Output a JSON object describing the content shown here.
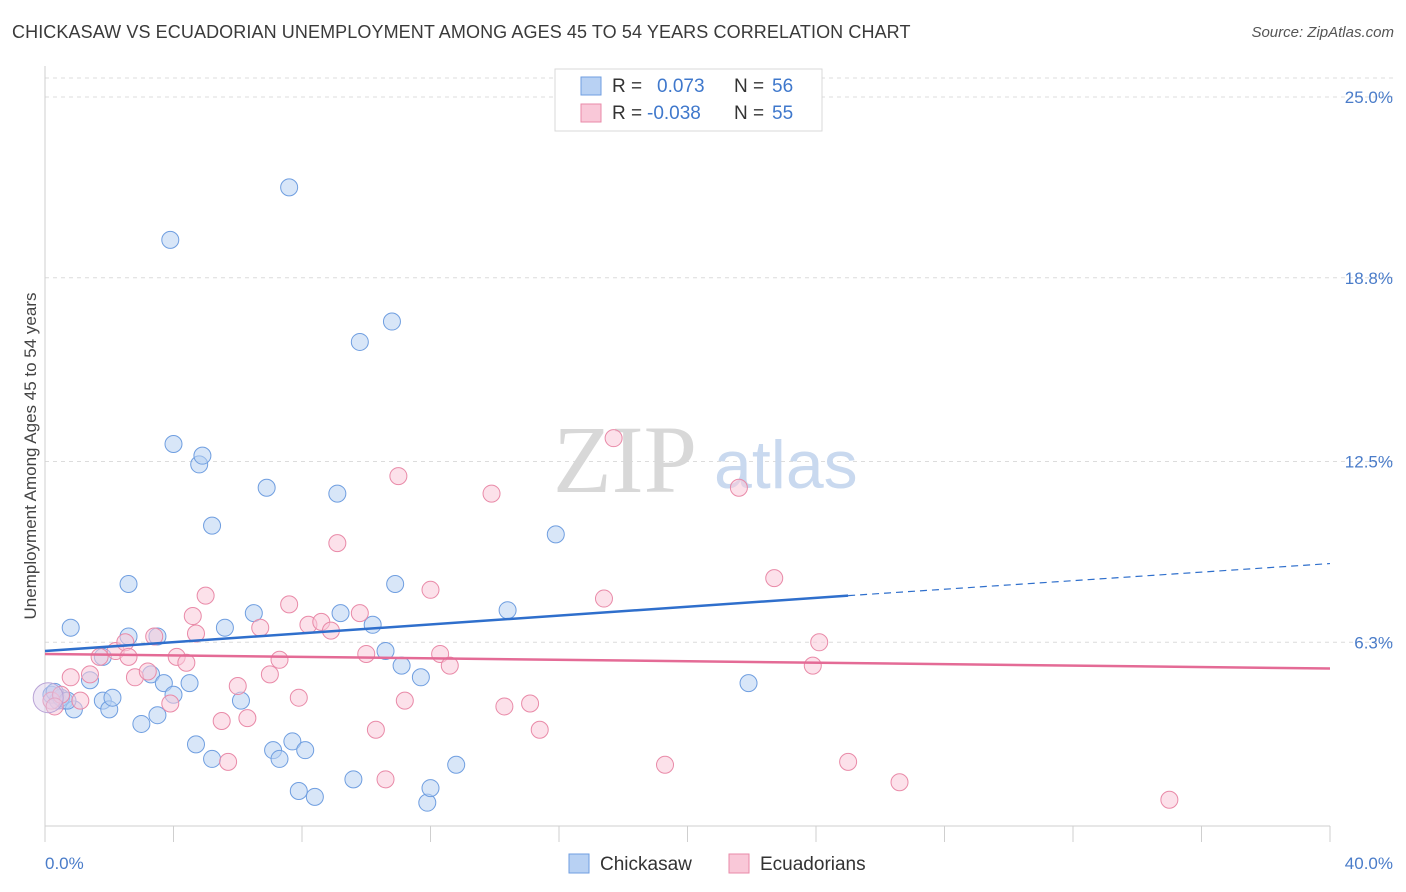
{
  "title": "CHICKASAW VS ECUADORIAN UNEMPLOYMENT AMONG AGES 45 TO 54 YEARS CORRELATION CHART",
  "source": "Source: ZipAtlas.com",
  "watermark": {
    "zip": "ZIP",
    "atlas": "atlas"
  },
  "legend": {
    "r_label": "R =",
    "n_label": "N =",
    "rows": [
      {
        "r": "0.073",
        "n": "56",
        "color": "#b8d1f3",
        "stroke": "#6f9ee0"
      },
      {
        "r": "-0.038",
        "n": "55",
        "color": "#f9c8d8",
        "stroke": "#e98aa8"
      }
    ]
  },
  "bottom_legend": [
    {
      "label": "Chickasaw",
      "color": "#b8d1f3",
      "stroke": "#6f9ee0"
    },
    {
      "label": "Ecuadorians",
      "color": "#f9c8d8",
      "stroke": "#e98aa8"
    }
  ],
  "chart_data": {
    "type": "scatter",
    "title": "CHICKASAW VS ECUADORIAN UNEMPLOYMENT AMONG AGES 45 TO 54 YEARS CORRELATION CHART",
    "xlabel": "",
    "ylabel": "Unemployment Among Ages 45 to 54 years",
    "xlim": [
      0,
      40
    ],
    "ylim": [
      0,
      25
    ],
    "x_ticks": [
      "0.0%",
      "40.0%"
    ],
    "y_ticks": [
      {
        "value": 6.3,
        "label": "6.3%"
      },
      {
        "value": 12.5,
        "label": "12.5%"
      },
      {
        "value": 18.8,
        "label": "18.8%"
      },
      {
        "value": 25.0,
        "label": "25.0%"
      }
    ],
    "series": [
      {
        "name": "Chickasaw",
        "color": "#6f9ee0",
        "fill": "#b8d1f3",
        "trend": {
          "x0": 0,
          "y0": 6.0,
          "x1": 25,
          "y1": 7.9,
          "dash_to_x": 40,
          "dash_to_y": 9.0,
          "color": "#2f6fcc"
        },
        "points": [
          [
            0.2,
            4.5
          ],
          [
            0.4,
            4.3
          ],
          [
            0.6,
            4.3
          ],
          [
            0.8,
            6.8
          ],
          [
            0.9,
            4.0
          ],
          [
            1.8,
            4.3
          ],
          [
            1.8,
            5.8
          ],
          [
            2.6,
            6.5
          ],
          [
            2.6,
            8.3
          ],
          [
            2.0,
            4.0
          ],
          [
            3.0,
            3.5
          ],
          [
            3.3,
            5.2
          ],
          [
            3.5,
            6.5
          ],
          [
            3.5,
            3.8
          ],
          [
            3.7,
            4.9
          ],
          [
            4.0,
            4.5
          ],
          [
            4.0,
            13.1
          ],
          [
            4.5,
            4.9
          ],
          [
            4.7,
            2.8
          ],
          [
            4.8,
            12.4
          ],
          [
            4.9,
            12.7
          ],
          [
            5.2,
            10.3
          ],
          [
            5.2,
            2.3
          ],
          [
            5.6,
            6.8
          ],
          [
            6.1,
            4.3
          ],
          [
            6.5,
            7.3
          ],
          [
            6.9,
            11.6
          ],
          [
            7.1,
            2.6
          ],
          [
            7.3,
            2.3
          ],
          [
            7.6,
            21.9
          ],
          [
            7.7,
            2.9
          ],
          [
            7.9,
            1.2
          ],
          [
            8.1,
            2.6
          ],
          [
            8.4,
            1.0
          ],
          [
            9.1,
            11.4
          ],
          [
            9.2,
            7.3
          ],
          [
            9.6,
            1.6
          ],
          [
            9.8,
            16.6
          ],
          [
            10.2,
            6.9
          ],
          [
            10.6,
            6.0
          ],
          [
            10.8,
            17.3
          ],
          [
            10.9,
            8.3
          ],
          [
            11.1,
            5.5
          ],
          [
            11.7,
            5.1
          ],
          [
            11.9,
            0.8
          ],
          [
            12.0,
            1.3
          ],
          [
            12.8,
            2.1
          ],
          [
            14.4,
            7.4
          ],
          [
            15.9,
            10.0
          ],
          [
            21.9,
            4.9
          ],
          [
            2.1,
            4.4
          ],
          [
            1.4,
            5.0
          ],
          [
            0.5,
            4.4
          ],
          [
            0.3,
            4.6
          ],
          [
            3.9,
            20.1
          ],
          [
            0.7,
            4.3
          ]
        ]
      },
      {
        "name": "Ecuadorians",
        "color": "#e98aa8",
        "fill": "#f9c8d8",
        "trend": {
          "x0": 0,
          "y0": 5.9,
          "x1": 40,
          "y1": 5.4,
          "color": "#e46b96"
        },
        "points": [
          [
            0.2,
            4.3
          ],
          [
            0.5,
            4.5
          ],
          [
            0.8,
            5.1
          ],
          [
            1.1,
            4.3
          ],
          [
            1.4,
            5.2
          ],
          [
            1.7,
            5.8
          ],
          [
            2.2,
            6.0
          ],
          [
            2.5,
            6.3
          ],
          [
            2.6,
            5.8
          ],
          [
            2.8,
            5.1
          ],
          [
            3.2,
            5.3
          ],
          [
            3.4,
            6.5
          ],
          [
            3.9,
            4.2
          ],
          [
            4.1,
            5.8
          ],
          [
            4.4,
            5.6
          ],
          [
            4.6,
            7.2
          ],
          [
            4.7,
            6.6
          ],
          [
            5.0,
            7.9
          ],
          [
            5.5,
            3.6
          ],
          [
            5.7,
            2.2
          ],
          [
            6.0,
            4.8
          ],
          [
            6.3,
            3.7
          ],
          [
            6.7,
            6.8
          ],
          [
            7.0,
            5.2
          ],
          [
            7.3,
            5.7
          ],
          [
            7.6,
            7.6
          ],
          [
            7.9,
            4.4
          ],
          [
            8.2,
            6.9
          ],
          [
            8.6,
            7.0
          ],
          [
            8.9,
            6.7
          ],
          [
            9.1,
            9.7
          ],
          [
            9.8,
            7.3
          ],
          [
            10.0,
            5.9
          ],
          [
            10.3,
            3.3
          ],
          [
            10.6,
            1.6
          ],
          [
            11.0,
            12.0
          ],
          [
            11.2,
            4.3
          ],
          [
            12.0,
            8.1
          ],
          [
            12.3,
            5.9
          ],
          [
            12.6,
            5.5
          ],
          [
            13.9,
            11.4
          ],
          [
            14.3,
            4.1
          ],
          [
            15.1,
            4.2
          ],
          [
            15.4,
            3.3
          ],
          [
            17.4,
            7.8
          ],
          [
            17.7,
            13.3
          ],
          [
            19.3,
            2.1
          ],
          [
            21.6,
            11.6
          ],
          [
            22.7,
            8.5
          ],
          [
            23.9,
            5.5
          ],
          [
            24.1,
            6.3
          ],
          [
            25.0,
            2.2
          ],
          [
            26.6,
            1.5
          ],
          [
            35.0,
            0.9
          ],
          [
            0.3,
            4.1
          ]
        ]
      }
    ],
    "grid": true,
    "legend_position": "top-center"
  }
}
